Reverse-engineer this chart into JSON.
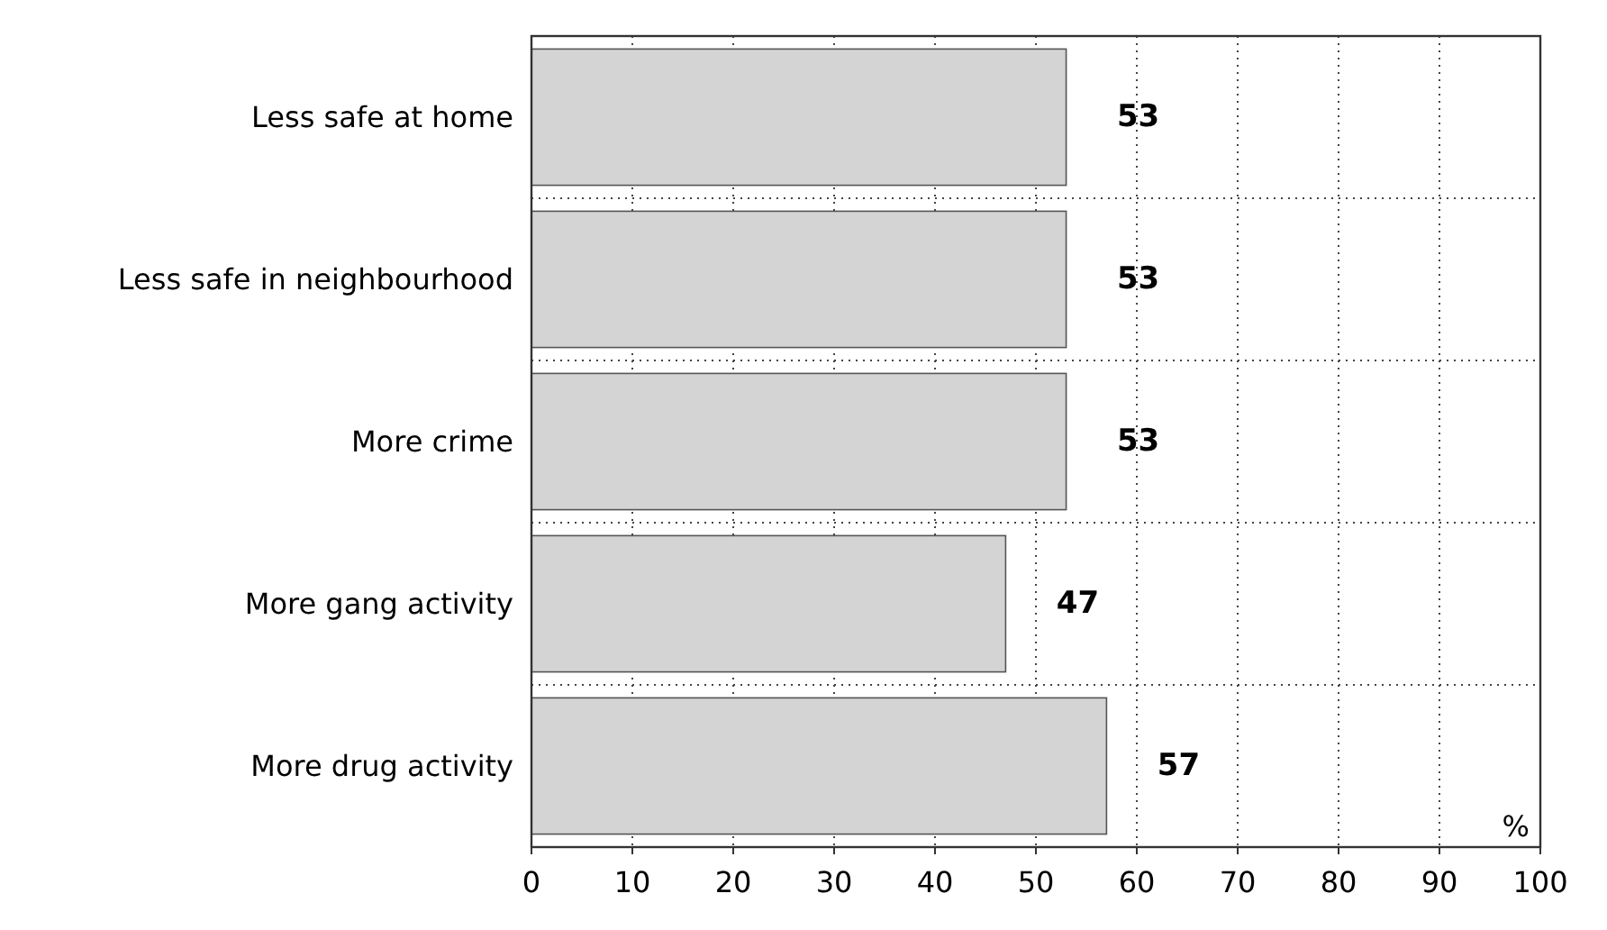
{
  "chart_data": {
    "type": "bar",
    "orientation": "horizontal",
    "categories": [
      "Less safe at home",
      "Less safe in neighbourhood",
      "More crime",
      "More gang activity",
      "More drug activity"
    ],
    "values": [
      53,
      53,
      53,
      47,
      57
    ],
    "color": "#d4d4d4",
    "data_labels": true,
    "xlim": [
      0,
      100
    ],
    "xticks": [
      0,
      10,
      20,
      30,
      40,
      50,
      60,
      70,
      80,
      90,
      100
    ],
    "xlabel": "%",
    "grid": true
  }
}
